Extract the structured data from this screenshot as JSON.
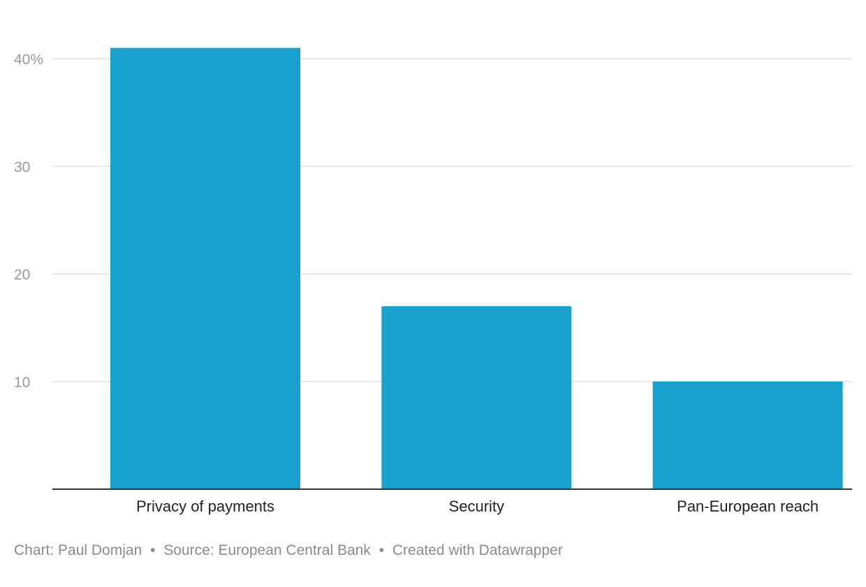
{
  "chart_data": {
    "type": "bar",
    "categories": [
      "Privacy of payments",
      "Security",
      "Pan-European reach"
    ],
    "values": [
      41,
      17,
      10
    ],
    "ylim": [
      0,
      40
    ],
    "yticks": [
      {
        "value": 10,
        "label": "10"
      },
      {
        "value": 20,
        "label": "20"
      },
      {
        "value": 30,
        "label": "30"
      },
      {
        "value": 40,
        "label": "40%"
      }
    ],
    "grid": true,
    "bar_color": "#18a1cd",
    "grid_color": "#e2e2e2",
    "axis_color": "#333333"
  },
  "footer": {
    "chart_credit": "Chart: Paul Domjan",
    "source": "Source: European Central Bank",
    "tool": "Created with Datawrapper",
    "separator": "•"
  }
}
